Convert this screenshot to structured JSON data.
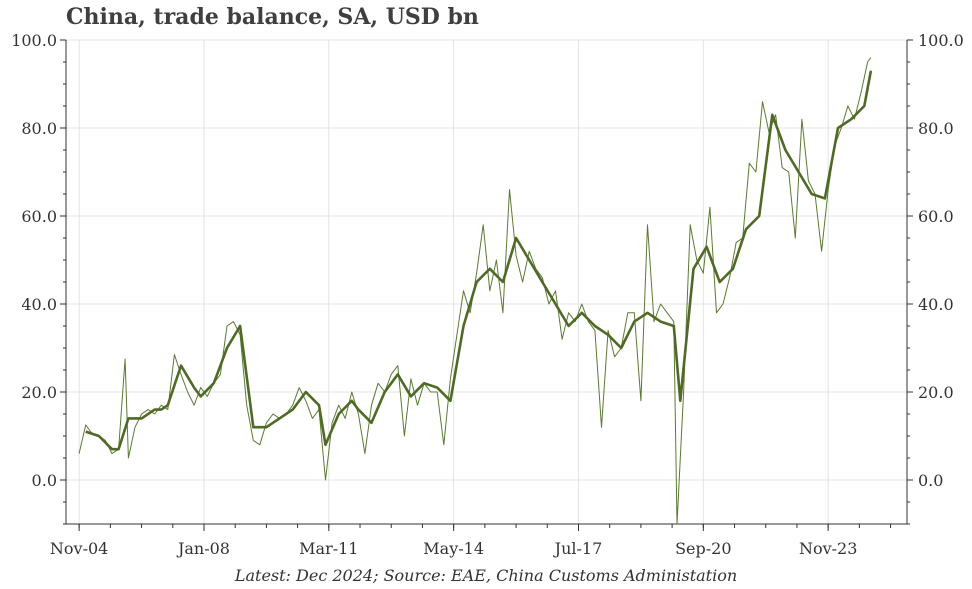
{
  "title": "China, trade balance, SA, USD bn",
  "source": "Latest: Dec 2024; Source: EAE, China Customs Administation",
  "colors": {
    "monthly": "#5a7a32",
    "smoothed": "#4f6a27",
    "grid": "#e3e3e3",
    "axis": "#333333"
  },
  "chart_data": {
    "type": "line",
    "title": "China, trade balance, SA, USD bn",
    "xlabel": "",
    "ylabel": "",
    "x_tick_labels": [
      "Nov-04",
      "Jan-08",
      "Mar-11",
      "May-14",
      "Jul-17",
      "Sep-20",
      "Nov-23"
    ],
    "y_tick_labels": [
      "0.0",
      "20.0",
      "40.0",
      "60.0",
      "80.0",
      "100.0"
    ],
    "y_ticks": [
      0,
      20,
      40,
      60,
      80,
      100
    ],
    "xlim": [
      "2004-07",
      "2025-11"
    ],
    "ylim": [
      -10,
      100
    ],
    "grid": true,
    "right_axis": true,
    "series": [
      {
        "style": "thin",
        "points": [
          [
            "2004-11",
            6
          ],
          [
            "2005-01",
            12.5
          ],
          [
            "2005-03",
            10.5
          ],
          [
            "2005-05",
            10
          ],
          [
            "2005-07",
            9
          ],
          [
            "2005-09",
            6
          ],
          [
            "2005-11",
            7
          ],
          [
            "2006-01",
            27.5
          ],
          [
            "2006-02",
            5
          ],
          [
            "2006-04",
            12
          ],
          [
            "2006-06",
            15
          ],
          [
            "2006-08",
            16
          ],
          [
            "2006-10",
            15
          ],
          [
            "2006-12",
            17
          ],
          [
            "2007-02",
            16
          ],
          [
            "2007-04",
            28.5
          ],
          [
            "2007-06",
            24
          ],
          [
            "2007-08",
            20
          ],
          [
            "2007-10",
            17
          ],
          [
            "2007-12",
            21
          ],
          [
            "2008-02",
            19
          ],
          [
            "2008-04",
            22
          ],
          [
            "2008-06",
            24
          ],
          [
            "2008-08",
            35
          ],
          [
            "2008-10",
            36
          ],
          [
            "2008-12",
            33
          ],
          [
            "2009-02",
            17
          ],
          [
            "2009-04",
            9
          ],
          [
            "2009-06",
            8
          ],
          [
            "2009-08",
            13
          ],
          [
            "2009-10",
            15
          ],
          [
            "2009-12",
            14
          ],
          [
            "2010-02",
            15
          ],
          [
            "2010-04",
            17
          ],
          [
            "2010-06",
            21
          ],
          [
            "2010-08",
            18
          ],
          [
            "2010-10",
            14
          ],
          [
            "2010-12",
            16
          ],
          [
            "2011-02",
            0
          ],
          [
            "2011-04",
            13
          ],
          [
            "2011-06",
            17
          ],
          [
            "2011-08",
            14
          ],
          [
            "2011-10",
            20
          ],
          [
            "2011-12",
            15
          ],
          [
            "2012-02",
            6
          ],
          [
            "2012-04",
            17
          ],
          [
            "2012-06",
            22
          ],
          [
            "2012-08",
            20
          ],
          [
            "2012-10",
            24
          ],
          [
            "2012-12",
            26
          ],
          [
            "2013-02",
            10
          ],
          [
            "2013-04",
            23
          ],
          [
            "2013-06",
            17
          ],
          [
            "2013-08",
            22
          ],
          [
            "2013-10",
            20
          ],
          [
            "2013-12",
            20
          ],
          [
            "2014-02",
            8
          ],
          [
            "2014-04",
            23
          ],
          [
            "2014-06",
            33
          ],
          [
            "2014-08",
            43
          ],
          [
            "2014-10",
            38
          ],
          [
            "2014-12",
            47
          ],
          [
            "2015-02",
            58
          ],
          [
            "2015-04",
            43
          ],
          [
            "2015-06",
            50
          ],
          [
            "2015-08",
            38
          ],
          [
            "2015-10",
            66
          ],
          [
            "2015-12",
            51
          ],
          [
            "2016-02",
            45
          ],
          [
            "2016-04",
            52
          ],
          [
            "2016-06",
            48
          ],
          [
            "2016-08",
            46
          ],
          [
            "2016-10",
            40
          ],
          [
            "2016-12",
            43
          ],
          [
            "2017-02",
            32
          ],
          [
            "2017-04",
            38
          ],
          [
            "2017-06",
            36
          ],
          [
            "2017-08",
            40
          ],
          [
            "2017-10",
            36
          ],
          [
            "2017-12",
            34
          ],
          [
            "2018-02",
            12
          ],
          [
            "2018-04",
            34
          ],
          [
            "2018-06",
            28
          ],
          [
            "2018-08",
            30
          ],
          [
            "2018-10",
            38
          ],
          [
            "2018-12",
            38
          ],
          [
            "2019-02",
            18
          ],
          [
            "2019-04",
            58
          ],
          [
            "2019-06",
            36
          ],
          [
            "2019-08",
            40
          ],
          [
            "2019-10",
            38
          ],
          [
            "2019-12",
            36
          ],
          [
            "2020-01",
            -10
          ],
          [
            "2020-03",
            20
          ],
          [
            "2020-05",
            58
          ],
          [
            "2020-07",
            50
          ],
          [
            "2020-09",
            47
          ],
          [
            "2020-11",
            62
          ],
          [
            "2021-01",
            38
          ],
          [
            "2021-03",
            40
          ],
          [
            "2021-05",
            46
          ],
          [
            "2021-07",
            54
          ],
          [
            "2021-09",
            55
          ],
          [
            "2021-11",
            72
          ],
          [
            "2022-01",
            70
          ],
          [
            "2022-03",
            86
          ],
          [
            "2022-05",
            79
          ],
          [
            "2022-07",
            83
          ],
          [
            "2022-09",
            71
          ],
          [
            "2022-11",
            70
          ],
          [
            "2023-01",
            55
          ],
          [
            "2023-03",
            82
          ],
          [
            "2023-05",
            68
          ],
          [
            "2023-07",
            65
          ],
          [
            "2023-09",
            52
          ],
          [
            "2023-11",
            66
          ],
          [
            "2024-01",
            76
          ],
          [
            "2024-03",
            80
          ],
          [
            "2024-05",
            85
          ],
          [
            "2024-07",
            82
          ],
          [
            "2024-09",
            88
          ],
          [
            "2024-11",
            95
          ],
          [
            "2024-12",
            96
          ]
        ]
      },
      {
        "style": "thick",
        "points": [
          [
            "2005-01",
            11
          ],
          [
            "2005-05",
            10
          ],
          [
            "2005-09",
            7
          ],
          [
            "2005-11",
            7
          ],
          [
            "2006-02",
            14
          ],
          [
            "2006-06",
            14
          ],
          [
            "2006-10",
            16
          ],
          [
            "2006-12",
            16
          ],
          [
            "2007-02",
            17
          ],
          [
            "2007-06",
            26
          ],
          [
            "2007-10",
            21
          ],
          [
            "2007-12",
            19
          ],
          [
            "2008-04",
            22
          ],
          [
            "2008-08",
            30
          ],
          [
            "2008-12",
            35
          ],
          [
            "2009-04",
            12
          ],
          [
            "2009-08",
            12
          ],
          [
            "2009-12",
            14
          ],
          [
            "2010-04",
            16
          ],
          [
            "2010-08",
            20
          ],
          [
            "2010-12",
            17
          ],
          [
            "2011-02",
            8
          ],
          [
            "2011-06",
            15
          ],
          [
            "2011-10",
            18
          ],
          [
            "2011-12",
            16
          ],
          [
            "2012-04",
            13
          ],
          [
            "2012-08",
            20
          ],
          [
            "2012-12",
            24
          ],
          [
            "2013-04",
            19
          ],
          [
            "2013-08",
            22
          ],
          [
            "2013-12",
            21
          ],
          [
            "2014-04",
            18
          ],
          [
            "2014-08",
            35
          ],
          [
            "2014-12",
            45
          ],
          [
            "2015-04",
            48
          ],
          [
            "2015-08",
            45
          ],
          [
            "2015-12",
            55
          ],
          [
            "2016-04",
            50
          ],
          [
            "2016-08",
            45
          ],
          [
            "2016-12",
            40
          ],
          [
            "2017-04",
            35
          ],
          [
            "2017-08",
            38
          ],
          [
            "2017-12",
            35
          ],
          [
            "2018-04",
            33
          ],
          [
            "2018-08",
            30
          ],
          [
            "2018-12",
            36
          ],
          [
            "2019-04",
            38
          ],
          [
            "2019-08",
            36
          ],
          [
            "2019-12",
            35
          ],
          [
            "2020-02",
            18
          ],
          [
            "2020-06",
            48
          ],
          [
            "2020-10",
            53
          ],
          [
            "2021-02",
            45
          ],
          [
            "2021-06",
            48
          ],
          [
            "2021-10",
            57
          ],
          [
            "2022-02",
            60
          ],
          [
            "2022-06",
            83
          ],
          [
            "2022-10",
            75
          ],
          [
            "2023-02",
            70
          ],
          [
            "2023-06",
            65
          ],
          [
            "2023-10",
            64
          ],
          [
            "2024-02",
            80
          ],
          [
            "2024-06",
            82
          ],
          [
            "2024-10",
            85
          ],
          [
            "2024-12",
            93
          ]
        ]
      }
    ]
  }
}
